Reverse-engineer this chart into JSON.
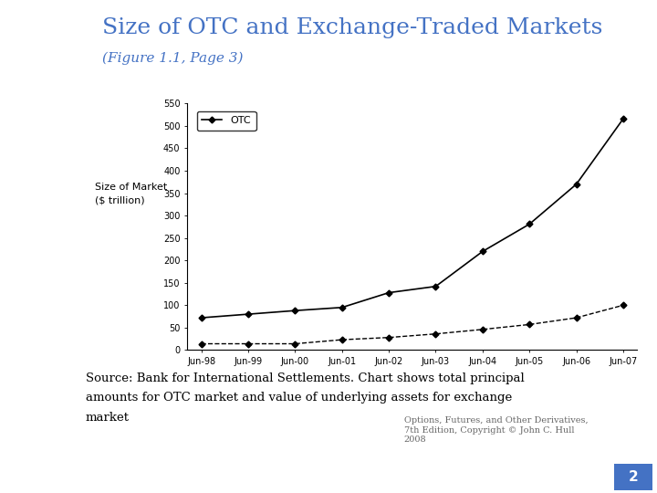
{
  "title": "Size of OTC and Exchange-Traded Markets",
  "subtitle": "(Figure 1.1, Page 3)",
  "title_color": "#4472C4",
  "subtitle_color": "#4472C4",
  "ylabel_line1": "Size of Market",
  "ylabel_line2": "($ trillion)",
  "x_labels": [
    "Jun-98",
    "Jun-99",
    "Jun-00",
    "Jun-01",
    "Jun-02",
    "Jun-03",
    "Jun-04",
    "Jun-05",
    "Jun-06",
    "Jun-07"
  ],
  "otc_values": [
    72,
    80,
    88,
    95,
    128,
    142,
    220,
    281,
    370,
    516
  ],
  "exchange_values": [
    14,
    14,
    14,
    23,
    28,
    36,
    46,
    57,
    72,
    100
  ],
  "ylim": [
    0,
    550
  ],
  "yticks": [
    0,
    50,
    100,
    150,
    200,
    250,
    300,
    350,
    400,
    450,
    500,
    550
  ],
  "source_text1": "Source: Bank for International Settlements. Chart shows total principal",
  "source_text2": "amounts for OTC market and value of underlying assets for exchange",
  "source_text3": "market",
  "footnote_text": "Options, Futures, and Other Derivatives,\n7th Edition, Copyright © John C. Hull\n2008",
  "page_number": "2",
  "bg_color": "#FFFFFF",
  "line_color": "#000000",
  "dec_bg_color": "#b8cce4"
}
